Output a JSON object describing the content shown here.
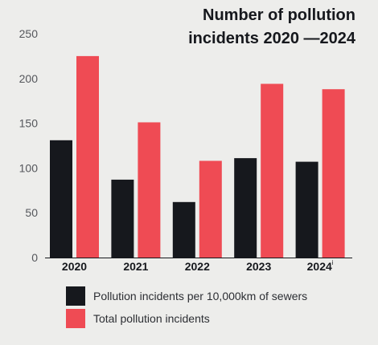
{
  "chart_data": {
    "type": "bar",
    "title_lines": [
      "Number of pollution",
      "incidents 2020 —2024"
    ],
    "categories": [
      "2020",
      "2021",
      "2022",
      "2023",
      "2024"
    ],
    "category_superscripts": [
      "",
      "",
      "",
      "",
      "i"
    ],
    "series": [
      {
        "name": "Pollution incidents per 10,000km of sewers",
        "color": "#16181d",
        "values": [
          131,
          87,
          62,
          111,
          107
        ]
      },
      {
        "name": "Total pollution incidents",
        "color": "#ef4b54",
        "values": [
          225,
          151,
          108,
          194,
          188
        ]
      }
    ],
    "ylim": [
      0,
      250
    ],
    "yticks": [
      0,
      50,
      100,
      150,
      200,
      250
    ],
    "grid": false,
    "legend_position": "bottom-left"
  }
}
